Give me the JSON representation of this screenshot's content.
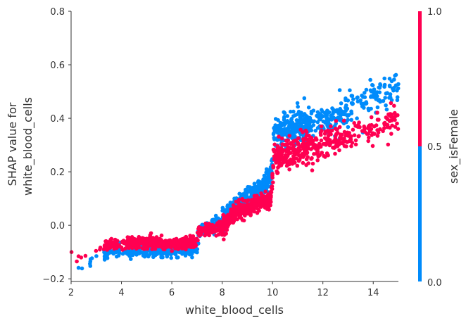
{
  "chart_data": {
    "type": "scatter",
    "title": "",
    "xlabel": "white_blood_cells",
    "ylabel_lines": [
      "SHAP value for",
      "white_blood_cells"
    ],
    "xlim": [
      2,
      15
    ],
    "ylim": [
      -0.21,
      0.8
    ],
    "x_ticks": [
      2,
      4,
      6,
      8,
      10,
      12,
      14
    ],
    "y_ticks": [
      -0.2,
      0.0,
      0.2,
      0.4,
      0.6,
      0.8
    ],
    "x_tick_labels": [
      "2",
      "4",
      "6",
      "8",
      "10",
      "12",
      "14"
    ],
    "y_tick_labels": [
      "−0.2",
      "0.0",
      "0.2",
      "0.4",
      "0.6",
      "0.8"
    ],
    "grid": false,
    "colorbar": {
      "label": "sex_isFemale",
      "tick_labels": [
        "1.0",
        "0.5",
        "0.0"
      ],
      "tick_values": [
        1.0,
        0.5,
        0.0
      ],
      "color_high": "#ff0051",
      "color_low": "#008bfb"
    },
    "series": [
      {
        "name": "sex_isFemale = 1",
        "color": "#ff0051",
        "trend": [
          [
            2.0,
            -0.1
          ],
          [
            2.4,
            -0.12
          ],
          [
            3.0,
            -0.09
          ],
          [
            3.5,
            -0.07
          ],
          [
            4.0,
            -0.065
          ],
          [
            5.0,
            -0.065
          ],
          [
            6.0,
            -0.07
          ],
          [
            7.0,
            -0.06
          ],
          [
            7.05,
            -0.02
          ],
          [
            8.0,
            -0.005
          ],
          [
            8.5,
            0.045
          ],
          [
            9.5,
            0.085
          ],
          [
            9.95,
            0.1
          ],
          [
            10.05,
            0.26
          ],
          [
            11.0,
            0.275
          ],
          [
            12.0,
            0.3
          ],
          [
            13.0,
            0.33
          ],
          [
            14.0,
            0.36
          ],
          [
            15.0,
            0.4
          ]
        ]
      },
      {
        "name": "sex_isFemale = 0",
        "color": "#008bfb",
        "trend": [
          [
            2.2,
            -0.16
          ],
          [
            3.0,
            -0.12
          ],
          [
            3.5,
            -0.1
          ],
          [
            4.0,
            -0.09
          ],
          [
            5.0,
            -0.09
          ],
          [
            6.0,
            -0.09
          ],
          [
            7.0,
            -0.085
          ],
          [
            7.05,
            -0.02
          ],
          [
            8.0,
            0.02
          ],
          [
            8.5,
            0.07
          ],
          [
            9.5,
            0.13
          ],
          [
            9.95,
            0.18
          ],
          [
            10.05,
            0.34
          ],
          [
            11.0,
            0.37
          ],
          [
            12.0,
            0.38
          ],
          [
            13.0,
            0.42
          ],
          [
            14.0,
            0.48
          ],
          [
            15.0,
            0.52
          ]
        ]
      }
    ]
  }
}
